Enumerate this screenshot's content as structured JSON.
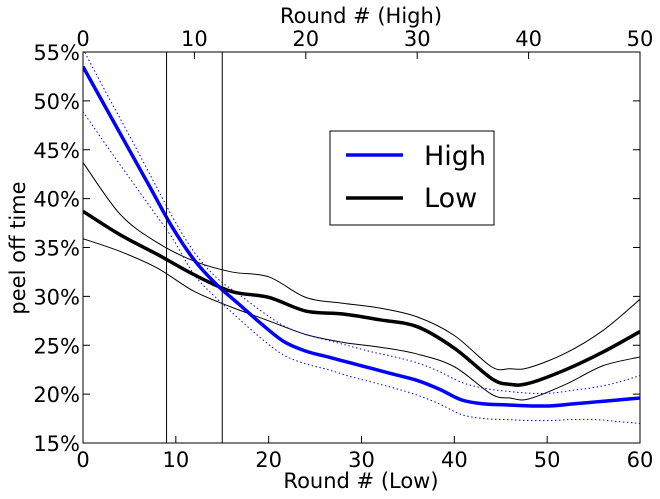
{
  "chart_data": {
    "type": "line",
    "x_label_bottom": "Round # (Low)",
    "x_label_top": "Round # (High)",
    "y_label": "peel off time",
    "x_bottom_range": [
      0,
      60
    ],
    "x_top_range": [
      0,
      50
    ],
    "x_bottom_ticks": [
      "0",
      "10",
      "20",
      "30",
      "40",
      "50",
      "60"
    ],
    "x_top_ticks": [
      "0",
      "10",
      "20",
      "30",
      "40",
      "50"
    ],
    "y_range": [
      0.15,
      0.55
    ],
    "y_ticks": [
      "15%",
      "20%",
      "25%",
      "30%",
      "35%",
      "40%",
      "45%",
      "50%",
      "55%"
    ],
    "grid": false,
    "legend_position": "center-right",
    "vertical_lines_low_x": [
      9,
      15
    ],
    "series": [
      {
        "name": "High",
        "axis": "top",
        "color": "#0000ff",
        "x": [
          0,
          2,
          4,
          6,
          8,
          10,
          12,
          14,
          16,
          18,
          20,
          22,
          24,
          26,
          28,
          30,
          32,
          34,
          36,
          38,
          40,
          42,
          44,
          46,
          48,
          50
        ],
        "values": [
          0.535,
          0.494,
          0.453,
          0.412,
          0.371,
          0.337,
          0.312,
          0.292,
          0.272,
          0.254,
          0.244,
          0.238,
          0.232,
          0.226,
          0.22,
          0.214,
          0.205,
          0.194,
          0.19,
          0.189,
          0.188,
          0.188,
          0.19,
          0.192,
          0.194,
          0.196
        ],
        "upper": [
          0.553,
          0.51,
          0.468,
          0.425,
          0.382,
          0.345,
          0.319,
          0.302,
          0.285,
          0.27,
          0.261,
          0.255,
          0.249,
          0.243,
          0.238,
          0.232,
          0.223,
          0.212,
          0.206,
          0.203,
          0.201,
          0.201,
          0.204,
          0.207,
          0.212,
          0.219
        ],
        "lower": [
          0.489,
          0.456,
          0.424,
          0.392,
          0.36,
          0.322,
          0.298,
          0.277,
          0.257,
          0.24,
          0.231,
          0.225,
          0.218,
          0.212,
          0.206,
          0.199,
          0.19,
          0.179,
          0.175,
          0.174,
          0.173,
          0.173,
          0.174,
          0.174,
          0.172,
          0.17
        ]
      },
      {
        "name": "Low",
        "axis": "bottom",
        "color": "#000000",
        "x": [
          0,
          4,
          8,
          12,
          16,
          20,
          24,
          28,
          32,
          36,
          40,
          44,
          46,
          48,
          52,
          56,
          60
        ],
        "values": [
          0.387,
          0.363,
          0.343,
          0.322,
          0.305,
          0.299,
          0.285,
          0.282,
          0.276,
          0.269,
          0.247,
          0.216,
          0.21,
          0.211,
          0.225,
          0.243,
          0.264
        ],
        "upper": [
          0.437,
          0.384,
          0.355,
          0.336,
          0.325,
          0.32,
          0.299,
          0.293,
          0.288,
          0.279,
          0.26,
          0.228,
          0.226,
          0.227,
          0.242,
          0.265,
          0.297
        ],
        "lower": [
          0.359,
          0.346,
          0.329,
          0.305,
          0.289,
          0.275,
          0.261,
          0.253,
          0.248,
          0.241,
          0.228,
          0.2,
          0.196,
          0.195,
          0.21,
          0.229,
          0.238
        ]
      }
    ]
  }
}
